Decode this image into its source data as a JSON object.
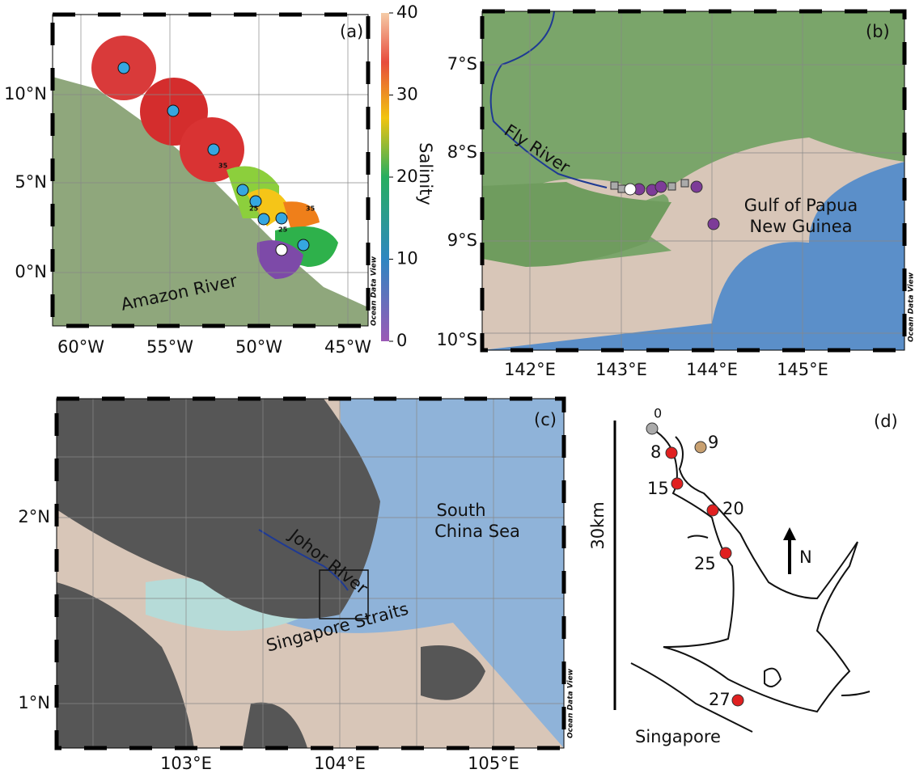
{
  "panels": {
    "a": {
      "label": "(a)",
      "lat_labels": [
        "10°N",
        "5°N",
        "0°N"
      ],
      "lon_labels": [
        "60°W",
        "55°W",
        "50°W",
        "45°W"
      ],
      "river": "Amazon River",
      "credit": "Ocean Data View",
      "contour_labels": [
        "35",
        "25",
        "25",
        "35"
      ],
      "colorbar": {
        "label": "Salinity",
        "range": [
          0,
          40
        ],
        "ticks": [
          0,
          10,
          20,
          30,
          40
        ]
      }
    },
    "b": {
      "label": "(b)",
      "lat_labels": [
        "7°S",
        "8°S",
        "9°S",
        "10°S"
      ],
      "lon_labels": [
        "142°E",
        "143°E",
        "144°E",
        "145°E"
      ],
      "river": "Fly River",
      "sea": [
        "Gulf of Papua",
        "New Guinea"
      ],
      "credit": "Ocean Data View"
    },
    "c": {
      "label": "(c)",
      "lat_labels": [
        "2°N",
        "1°N"
      ],
      "lon_labels": [
        "103°E",
        "104°E",
        "105°E"
      ],
      "river": "Johor RIver",
      "sea": [
        "South",
        "China Sea"
      ],
      "strait": "Singapore Straits",
      "credit": "Ocean Data View"
    },
    "d": {
      "label": "(d)",
      "scale": "30km",
      "north": "N",
      "stations": [
        0,
        8,
        9,
        15,
        20,
        25,
        27
      ],
      "place": "Singapore"
    }
  }
}
